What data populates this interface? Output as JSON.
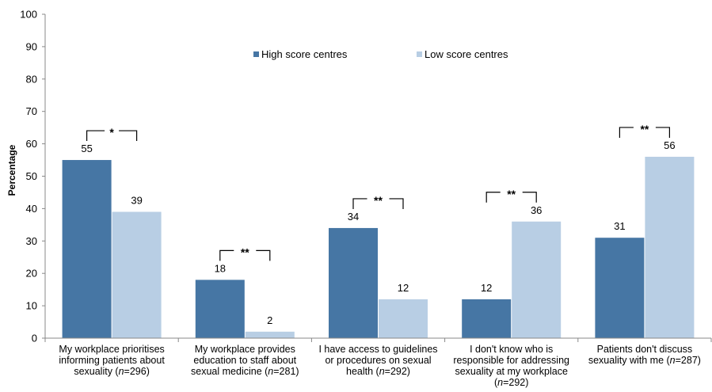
{
  "chart_data": {
    "type": "bar",
    "title": "",
    "xlabel": "",
    "ylabel": "Percentage",
    "ylim": [
      0,
      100
    ],
    "yticks": [
      0,
      10,
      20,
      30,
      40,
      50,
      60,
      70,
      80,
      90,
      100
    ],
    "grid": false,
    "legend_position": "top-center",
    "categories": [
      [
        "My workplace prioritises",
        "informing patients about",
        "sexuality (n=296)"
      ],
      [
        "My workplace provides",
        "education to staff about",
        "sexual medicine (n=281)"
      ],
      [
        "I have access to guidelines",
        "or procedures  on sexual",
        "health (n=292)"
      ],
      [
        "I don't know who is",
        "responsible for addressing",
        "sexuality at my workplace",
        "(n=292)"
      ],
      [
        "Patients don't discuss",
        "sexuality with me (n=287)"
      ]
    ],
    "series": [
      {
        "name": "High score centres",
        "color": "#4676A4",
        "values": [
          55,
          18,
          34,
          12,
          31
        ]
      },
      {
        "name": "Low score centres",
        "color": "#B8CEE4",
        "values": [
          39,
          2,
          12,
          36,
          56
        ]
      }
    ],
    "significance": [
      "*",
      "**",
      "**",
      "**",
      "**"
    ]
  }
}
